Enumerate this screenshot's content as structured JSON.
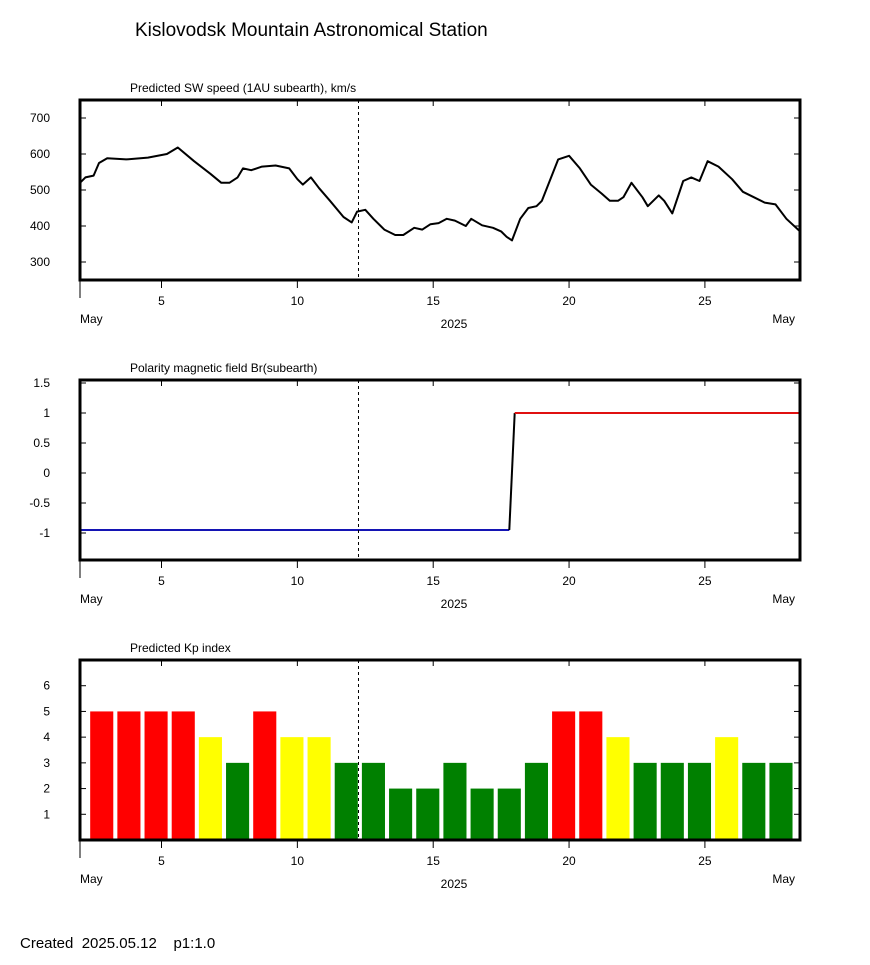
{
  "title": "Kislovodsk Mountain Astronomical Station",
  "footer": {
    "created_label": "Created",
    "created_date": "2025.05.12",
    "page": "p1:1.0"
  },
  "current_time_day": 12.25,
  "x_axis": {
    "range": [
      2,
      28.5
    ],
    "ticks": [
      5,
      10,
      15,
      20,
      25
    ],
    "tick_labels": [
      "5",
      "10",
      "15",
      "20",
      "25"
    ],
    "left_label": "May",
    "right_label": "May",
    "year_label": "2025"
  },
  "chart_data": [
    {
      "type": "line",
      "title": "Predicted SW speed (1AU subearth), km/s",
      "ylim": [
        250,
        750
      ],
      "y_ticks": [
        300,
        400,
        500,
        600,
        700
      ],
      "y_tick_labels": [
        "300",
        "400",
        "500",
        "600",
        "700"
      ],
      "grid": false,
      "series": [
        {
          "color": "#000000",
          "x": [
            2.0,
            2.2,
            2.5,
            2.7,
            3.0,
            3.7,
            4.5,
            5.2,
            5.6,
            6.2,
            6.8,
            7.2,
            7.5,
            7.8,
            8.0,
            8.3,
            8.7,
            9.2,
            9.7,
            10.0,
            10.2,
            10.5,
            10.8,
            11.2,
            11.7,
            12.0,
            12.2,
            12.5,
            12.8,
            13.2,
            13.6,
            13.9,
            14.3,
            14.6,
            14.9,
            15.2,
            15.5,
            15.8,
            16.2,
            16.4,
            16.8,
            17.2,
            17.5,
            17.7,
            17.9,
            18.2,
            18.5,
            18.8,
            19.0,
            19.6,
            20.0,
            20.4,
            20.8,
            21.2,
            21.5,
            21.8,
            22.0,
            22.3,
            22.7,
            22.9,
            23.3,
            23.5,
            23.8,
            24.2,
            24.5,
            24.8,
            25.1,
            25.5,
            26.0,
            26.4,
            26.8,
            27.2,
            27.6,
            28.0,
            28.5
          ],
          "values": [
            520,
            535,
            540,
            575,
            588,
            585,
            590,
            600,
            618,
            580,
            545,
            520,
            520,
            535,
            560,
            555,
            565,
            568,
            560,
            530,
            515,
            535,
            505,
            470,
            425,
            410,
            440,
            445,
            420,
            390,
            375,
            375,
            395,
            390,
            405,
            408,
            420,
            415,
            400,
            420,
            402,
            395,
            385,
            370,
            360,
            420,
            450,
            455,
            470,
            585,
            595,
            560,
            515,
            490,
            470,
            470,
            480,
            520,
            480,
            455,
            485,
            470,
            435,
            525,
            535,
            525,
            580,
            565,
            530,
            495,
            480,
            465,
            460,
            420,
            385
          ]
        }
      ]
    },
    {
      "type": "line",
      "title": "Polarity magnetic field  Br(subearth)",
      "ylim": [
        -1.45,
        1.55
      ],
      "y_ticks": [
        -1,
        -0.5,
        0,
        0.5,
        1,
        1.5
      ],
      "y_tick_labels": [
        "-1",
        "-0.5",
        "0",
        "0.5",
        "1",
        "1.5"
      ],
      "grid": false,
      "series": [
        {
          "color": "#1414b4",
          "x": [
            2.0,
            17.8
          ],
          "values": [
            -0.95,
            -0.95
          ]
        },
        {
          "color": "#000000",
          "x": [
            17.8,
            18.0
          ],
          "values": [
            -0.95,
            1.0
          ]
        },
        {
          "color": "#e01010",
          "x": [
            18.0,
            28.5
          ],
          "values": [
            1.0,
            1.0
          ]
        }
      ]
    },
    {
      "type": "bar",
      "title": "Predicted Kp index",
      "ylim": [
        0,
        7
      ],
      "y_ticks": [
        1,
        2,
        3,
        4,
        5,
        6
      ],
      "y_tick_labels": [
        "1",
        "2",
        "3",
        "4",
        "5",
        "6"
      ],
      "grid": false,
      "bar_width_days": 0.85,
      "colors": {
        "red": "#ff0000",
        "yellow": "#ffff00",
        "green": "#008000"
      },
      "x": [
        2.8,
        3.8,
        4.8,
        5.8,
        6.8,
        7.8,
        8.8,
        9.8,
        10.8,
        11.8,
        12.8,
        13.8,
        14.8,
        15.8,
        16.8,
        17.8,
        18.8,
        19.8,
        20.8,
        21.8,
        22.8,
        23.8,
        24.8,
        25.8,
        26.8,
        27.8
      ],
      "values": [
        5,
        5,
        5,
        5,
        4,
        3,
        5,
        4,
        4,
        3,
        3,
        2,
        2,
        3,
        2,
        2,
        3,
        5,
        5,
        4,
        3,
        3,
        3,
        4,
        3,
        3
      ]
    }
  ]
}
